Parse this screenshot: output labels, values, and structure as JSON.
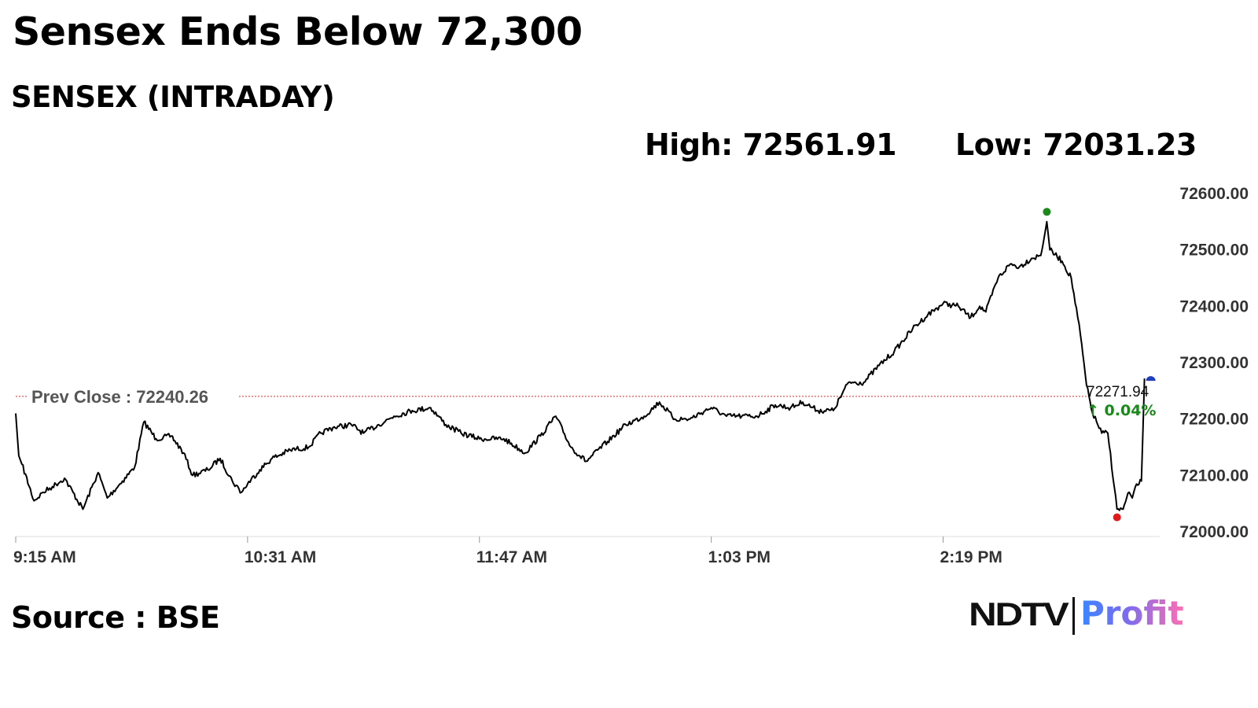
{
  "title": "Sensex Ends Below 72,300",
  "subtitle": "SENSEX (INTRADAY)",
  "stats": {
    "high": "High: 72561.91",
    "low": "Low: 72031.23"
  },
  "source": "Source : BSE",
  "logo": {
    "brand": "NDTV",
    "sub": "Profit"
  },
  "colors": {
    "line": "#000000",
    "prev_close": "#d62828",
    "high_marker": "#1a8a1a",
    "low_marker": "#e01b1b",
    "last_marker": "#1f3fbf",
    "change": "#178a17",
    "axis": "#dddddd",
    "label": "#333333"
  },
  "chart_data": {
    "type": "line",
    "title": "SENSEX (INTRADAY)",
    "ylim": [
      72000,
      72600
    ],
    "y_ticks": [
      72000,
      72100,
      72200,
      72300,
      72400,
      72500,
      72600
    ],
    "y_tick_labels": [
      "72000.00",
      "72100.00",
      "72200.00",
      "72300.00",
      "72400.00",
      "72500.00",
      "72600.00"
    ],
    "x_domain": [
      "9:15 AM",
      "3:30 PM"
    ],
    "x_ticks": [
      "9:15 AM",
      "10:31 AM",
      "11:47 AM",
      "1:03 PM",
      "2:19 PM"
    ],
    "grid": false,
    "prev_close": {
      "label": "Prev Close : 72240.26",
      "value": 72240.26
    },
    "high": {
      "time": "2:53 PM",
      "value": 72561.91
    },
    "low": {
      "time": "3:16 PM",
      "value": 72031.23
    },
    "last": {
      "label": "72271.94",
      "change": "↑ 0.04%",
      "value": 72271.94
    },
    "series": [
      {
        "x": [
          "9:15 AM",
          "9:16 AM",
          "9:17 AM",
          "9:21 AM",
          "9:24 AM",
          "9:27 AM",
          "9:31 AM",
          "9:37 AM",
          "9:42 AM",
          "9:45 AM",
          "9:50 AM",
          "9:54 AM",
          "9:57 AM",
          "10:01 AM",
          "10:06 AM",
          "10:10 AM",
          "10:13 AM",
          "10:18 AM",
          "10:22 AM",
          "10:26 AM",
          "10:29 AM",
          "10:31 AM",
          "10:35 AM",
          "10:39 AM",
          "10:45 AM",
          "10:51 AM",
          "10:55 AM",
          "10:59 AM",
          "11:05 AM",
          "11:09 AM",
          "11:14 AM",
          "11:19 AM",
          "11:25 AM",
          "11:31 AM",
          "11:36 AM",
          "11:41 AM",
          "11:47 AM",
          "11:55 AM",
          "12:02 PM",
          "12:07 PM",
          "12:12 PM",
          "12:17 PM",
          "12:22 PM",
          "12:29 PM",
          "12:35 PM",
          "12:41 PM",
          "12:46 PM",
          "12:51 PM",
          "12:56 PM",
          "1:01 PM",
          "1:03 PM",
          "1:08 PM",
          "1:13 PM",
          "1:18 PM",
          "1:24 PM",
          "1:29 PM",
          "1:33 PM",
          "1:38 PM",
          "1:43 PM",
          "1:48 PM",
          "1:53 PM",
          "1:58 PM",
          "2:03 PM",
          "2:09 PM",
          "2:14 PM",
          "2:19 PM",
          "2:24 PM",
          "2:28 PM",
          "2:31 PM",
          "2:33 PM",
          "2:37 PM",
          "2:41 PM",
          "2:44 PM",
          "2:48 PM",
          "2:51 PM",
          "2:53 PM",
          "2:54 PM",
          "2:58 PM",
          "3:01 PM",
          "3:04 PM",
          "3:06 PM",
          "3:08 PM",
          "3:11 PM",
          "3:13 PM",
          "3:16 PM",
          "3:18 PM",
          "3:20 PM",
          "3:21 PM",
          "3:22 PM",
          "3:24 PM",
          "3:25 PM"
        ],
        "values": [
          72210,
          72135,
          72120,
          72055,
          72070,
          72080,
          72095,
          72040,
          72105,
          72060,
          72090,
          72115,
          72195,
          72165,
          72170,
          72140,
          72100,
          72110,
          72130,
          72090,
          72070,
          72085,
          72110,
          72130,
          72145,
          72150,
          72175,
          72185,
          72190,
          72175,
          72190,
          72205,
          72215,
          72220,
          72190,
          72175,
          72165,
          72165,
          72140,
          72170,
          72205,
          72150,
          72125,
          72160,
          72190,
          72205,
          72230,
          72200,
          72200,
          72215,
          72220,
          72205,
          72205,
          72205,
          72225,
          72220,
          72230,
          72215,
          72215,
          72265,
          72265,
          72295,
          72320,
          72360,
          72385,
          72405,
          72400,
          72380,
          72400,
          72390,
          72450,
          72475,
          72470,
          72485,
          72490,
          72550,
          72500,
          72480,
          72450,
          72350,
          72260,
          72210,
          72175,
          72175,
          72040,
          72040,
          72070,
          72060,
          72080,
          72090,
          72271.94
        ]
      }
    ]
  }
}
